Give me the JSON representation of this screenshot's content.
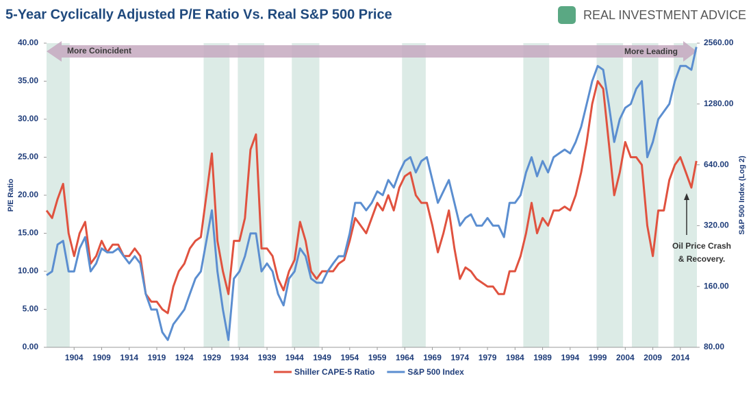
{
  "chart_data": {
    "type": "line",
    "title": "5-Year Cyclically Adjusted P/E Ratio Vs. Real S&P 500 Price",
    "brand": "REAL INVESTMENT ADVICE",
    "ylabel": "P/E Ratio",
    "y2label": "S&P 500 Index  (Log 2)",
    "left_arrow_label": "More Coincident",
    "right_arrow_label": "More Leading",
    "annotation": [
      "Oil Price Crash",
      "& Recovery."
    ],
    "xlim": [
      1899,
      2017
    ],
    "xticks": [
      1904,
      1909,
      1914,
      1919,
      1924,
      1929,
      1934,
      1939,
      1944,
      1949,
      1954,
      1959,
      1964,
      1969,
      1974,
      1979,
      1984,
      1989,
      1994,
      1999,
      2004,
      2009,
      2014
    ],
    "ylim": [
      0,
      40
    ],
    "yticks": [
      {
        "value": 0,
        "label": "0.00"
      },
      {
        "value": 5,
        "label": "5.00"
      },
      {
        "value": 10,
        "label": "10.00"
      },
      {
        "value": 15,
        "label": "15.00"
      },
      {
        "value": 20,
        "label": "20.00"
      },
      {
        "value": 25,
        "label": "25.00"
      },
      {
        "value": 30,
        "label": "30.00"
      },
      {
        "value": 35,
        "label": "35.00"
      },
      {
        "value": 40,
        "label": "40.00"
      }
    ],
    "y2lim": [
      80,
      2560
    ],
    "y2_log_base": 2,
    "y2ticks": [
      {
        "value": 80,
        "label": "80.00"
      },
      {
        "value": 160,
        "label": "160.00"
      },
      {
        "value": 320,
        "label": "320.00"
      },
      {
        "value": 640,
        "label": "640.00"
      },
      {
        "value": 1280,
        "label": "1280.00"
      },
      {
        "value": 2560,
        "label": "2560.00"
      }
    ],
    "shaded_ranges": [
      [
        1899,
        1903.2
      ],
      [
        1927.5,
        1932.2
      ],
      [
        1933.7,
        1938.5
      ],
      [
        1943.5,
        1948.5
      ],
      [
        1963.5,
        1967.8
      ],
      [
        1985.5,
        1990.2
      ],
      [
        1998.8,
        2003.6
      ],
      [
        2005.2,
        2010
      ],
      [
        2012.8,
        2017
      ]
    ],
    "shade_color": "#dcebe6",
    "x": [
      1899,
      1900,
      1901,
      1902,
      1903,
      1904,
      1905,
      1906,
      1907,
      1908,
      1909,
      1910,
      1911,
      1912,
      1913,
      1914,
      1915,
      1916,
      1917,
      1918,
      1919,
      1920,
      1921,
      1922,
      1923,
      1924,
      1925,
      1926,
      1927,
      1928,
      1929,
      1930,
      1931,
      1932,
      1933,
      1934,
      1935,
      1936,
      1937,
      1938,
      1939,
      1940,
      1941,
      1942,
      1943,
      1944,
      1945,
      1946,
      1947,
      1948,
      1949,
      1950,
      1951,
      1952,
      1953,
      1954,
      1955,
      1956,
      1957,
      1958,
      1959,
      1960,
      1961,
      1962,
      1963,
      1964,
      1965,
      1966,
      1967,
      1968,
      1969,
      1970,
      1971,
      1972,
      1973,
      1974,
      1975,
      1976,
      1977,
      1978,
      1979,
      1980,
      1981,
      1982,
      1983,
      1984,
      1985,
      1986,
      1987,
      1988,
      1989,
      1990,
      1991,
      1992,
      1993,
      1994,
      1995,
      1996,
      1997,
      1998,
      1999,
      2000,
      2001,
      2002,
      2003,
      2004,
      2005,
      2006,
      2007,
      2008,
      2009,
      2010,
      2011,
      2012,
      2013,
      2014,
      2015,
      2016,
      2016.9
    ],
    "series": [
      {
        "name": "Shiller CAPE-5 Ratio",
        "color": "#e0523f",
        "values": [
          18,
          17,
          19.5,
          21.5,
          15,
          12,
          15,
          16.5,
          11,
          12,
          14,
          12.5,
          13.5,
          13.5,
          12,
          12,
          13,
          12,
          7,
          6,
          6,
          5,
          4.5,
          8,
          10,
          11,
          13,
          14,
          14.5,
          20,
          25.5,
          14,
          10,
          7,
          14,
          14,
          17,
          26,
          28,
          13,
          13,
          12,
          9,
          7.5,
          10,
          11.5,
          16.5,
          14,
          10,
          9,
          10,
          10,
          10,
          11,
          11.5,
          14,
          17,
          16,
          15,
          17,
          19,
          18,
          20,
          18,
          21,
          22.5,
          23,
          20,
          19,
          19,
          16,
          12.5,
          15,
          18,
          13,
          9,
          10.5,
          10,
          9,
          8.5,
          8,
          8,
          7,
          7,
          10,
          10,
          12,
          15,
          19,
          15,
          17,
          16,
          18,
          18,
          18.5,
          18,
          20,
          23,
          27,
          32,
          35,
          34,
          27,
          20,
          23,
          27,
          25,
          25,
          24,
          16,
          12,
          18,
          18,
          22,
          24,
          25,
          23,
          21,
          24.5
        ]
      },
      {
        "name": "S&P 500 Index",
        "color": "#5b8ed0",
        "axis": "y2",
        "values": [
          182,
          190,
          258,
          269,
          190,
          190,
          247,
          281,
          190,
          208,
          247,
          236,
          236,
          247,
          226,
          208,
          226,
          208,
          147,
          123,
          123,
          95,
          87,
          104,
          113,
          123,
          147,
          175,
          190,
          269,
          381,
          190,
          123,
          87,
          175,
          190,
          226,
          293,
          293,
          190,
          208,
          190,
          147,
          129,
          175,
          190,
          247,
          226,
          175,
          167,
          167,
          190,
          208,
          226,
          226,
          293,
          415,
          415,
          381,
          415,
          473,
          453,
          538,
          494,
          587,
          668,
          698,
          587,
          668,
          698,
          538,
          415,
          473,
          538,
          415,
          320,
          349,
          364,
          320,
          320,
          349,
          320,
          320,
          281,
          415,
          415,
          453,
          587,
          698,
          562,
          668,
          587,
          698,
          729,
          761,
          729,
          830,
          987,
          1280,
          1660,
          1974,
          1890,
          1280,
          830,
          1076,
          1225,
          1280,
          1522,
          1660,
          698,
          830,
          1076,
          1174,
          1280,
          1660,
          1974,
          1974,
          1890,
          2451
        ]
      }
    ]
  }
}
